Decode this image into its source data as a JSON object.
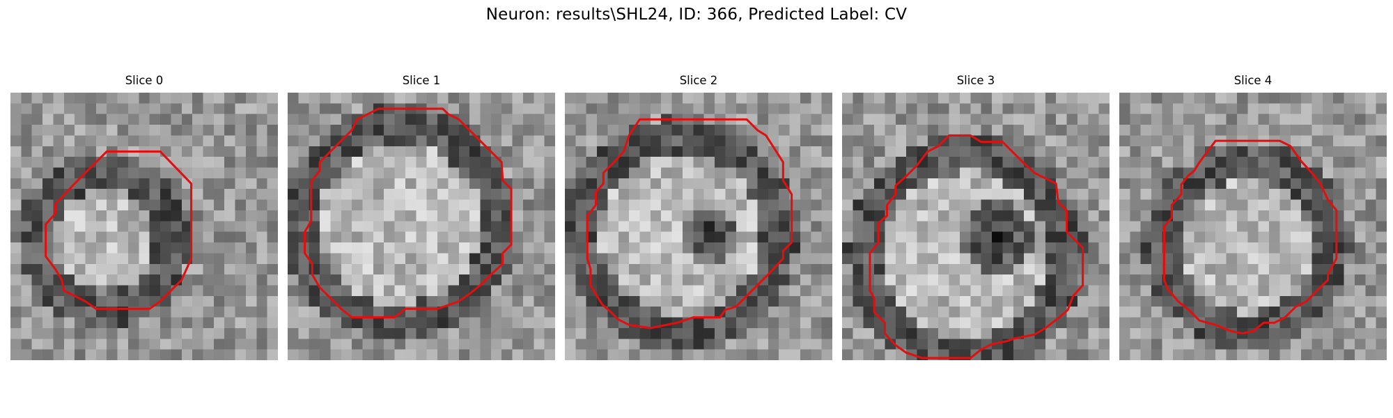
{
  "figure": {
    "title": "Neuron: results\\SHL24, ID: 366, Predicted Label: CV"
  },
  "colors": {
    "contour": "#e01010",
    "background": "#ffffff"
  },
  "panels": [
    {
      "title": "Slice 0",
      "image_description": "grayscale 25x25 microscopy patch with a bright roughly circular cell slightly left of centre surrounded by a dark ring",
      "contour": [
        [
          9,
          5.5
        ],
        [
          14,
          5.5
        ],
        [
          16.9,
          8.5
        ],
        [
          16.9,
          15.5
        ],
        [
          16,
          17.5
        ],
        [
          14,
          19.5
        ],
        [
          13,
          20.2
        ],
        [
          8,
          20.2
        ],
        [
          7,
          19.5
        ],
        [
          5,
          18.5
        ],
        [
          4.8,
          17.5
        ],
        [
          4.2,
          16.5
        ],
        [
          3.3,
          15.3
        ],
        [
          3.3,
          12.3
        ],
        [
          4.2,
          11.3
        ],
        [
          4.2,
          10.4
        ],
        [
          6,
          8.5
        ],
        [
          8,
          6.5
        ]
      ]
    },
    {
      "title": "Slice 1",
      "image_description": "grayscale patch with a large bright textured cell body outlined by a dark ring filling most of the frame",
      "contour": [
        [
          8.5,
          1.5
        ],
        [
          14.5,
          1.5
        ],
        [
          15,
          2
        ],
        [
          16,
          2.5
        ],
        [
          19,
          5.5
        ],
        [
          20,
          6.5
        ],
        [
          20.1,
          8.2
        ],
        [
          20.9,
          9
        ],
        [
          20.9,
          14.2
        ],
        [
          20.1,
          15
        ],
        [
          20.1,
          16
        ],
        [
          19,
          17
        ],
        [
          18,
          18
        ],
        [
          17,
          18.8
        ],
        [
          16,
          19.5
        ],
        [
          14,
          20.2
        ],
        [
          11,
          20.2
        ],
        [
          10,
          21
        ],
        [
          8,
          21
        ],
        [
          6,
          21
        ],
        [
          5,
          20.2
        ],
        [
          4,
          19.2
        ],
        [
          3,
          18.2
        ],
        [
          2.3,
          17
        ],
        [
          2.3,
          16
        ],
        [
          1.6,
          15
        ],
        [
          1.6,
          13
        ],
        [
          2.2,
          12
        ],
        [
          2.2,
          8.3
        ],
        [
          3,
          7.3
        ],
        [
          3,
          6.5
        ],
        [
          4,
          5.5
        ],
        [
          5,
          4.5
        ],
        [
          6,
          3.5
        ],
        [
          6.5,
          2.5
        ]
      ]
    },
    {
      "title": "Slice 2",
      "image_description": "grayscale patch with a large bright cell containing a dark irregular nucleus region right of centre, outlined by a darker ring",
      "contour": [
        [
          7,
          2.5
        ],
        [
          17,
          2.5
        ],
        [
          18,
          3.5
        ],
        [
          18.8,
          4
        ],
        [
          19.7,
          5.4
        ],
        [
          20.4,
          6.5
        ],
        [
          20.4,
          8.2
        ],
        [
          21.2,
          9.5
        ],
        [
          21.2,
          14
        ],
        [
          20.4,
          14.8
        ],
        [
          20.4,
          15.5
        ],
        [
          19,
          17
        ],
        [
          17,
          19
        ],
        [
          16,
          20
        ],
        [
          15,
          20.3
        ],
        [
          14.5,
          21
        ],
        [
          12,
          21
        ],
        [
          10.5,
          21.5
        ],
        [
          8,
          22
        ],
        [
          6,
          21.7
        ],
        [
          5,
          21.2
        ],
        [
          4.3,
          20.5
        ],
        [
          3.5,
          19.8
        ],
        [
          3,
          19
        ],
        [
          2.4,
          18
        ],
        [
          2.4,
          16.5
        ],
        [
          2.1,
          15.5
        ],
        [
          2.1,
          11.5
        ],
        [
          2.9,
          10.5
        ],
        [
          2.9,
          9.3
        ],
        [
          3.6,
          8.5
        ],
        [
          3.6,
          7.5
        ],
        [
          4.6,
          6.5
        ],
        [
          5.5,
          5.5
        ],
        [
          6,
          4
        ]
      ]
    },
    {
      "title": "Slice 3",
      "image_description": "grayscale patch showing a ring-shaped bright cell with a dark round nucleus in the middle and a dark rim",
      "contour": [
        [
          10,
          4
        ],
        [
          12,
          4
        ],
        [
          13,
          4.6
        ],
        [
          15,
          4.6
        ],
        [
          17,
          6.6
        ],
        [
          18,
          7.5
        ],
        [
          20,
          8.5
        ],
        [
          20.2,
          10.2
        ],
        [
          21,
          11
        ],
        [
          21,
          13
        ],
        [
          22.5,
          14.5
        ],
        [
          22.5,
          18
        ],
        [
          21.6,
          19
        ],
        [
          21.1,
          20.3
        ],
        [
          20.3,
          21
        ],
        [
          19,
          22
        ],
        [
          18,
          22.6
        ],
        [
          16,
          23
        ],
        [
          15.5,
          23.2
        ],
        [
          14,
          23.5
        ],
        [
          13,
          24
        ],
        [
          12,
          24.8
        ],
        [
          9,
          24.8
        ],
        [
          7.5,
          24.8
        ],
        [
          6,
          24.3
        ],
        [
          5,
          23.6
        ],
        [
          4,
          22.5
        ],
        [
          4,
          21.5
        ],
        [
          3,
          20.5
        ],
        [
          3,
          19.2
        ],
        [
          2.6,
          18.5
        ],
        [
          2.6,
          15
        ],
        [
          3.4,
          14
        ],
        [
          3.4,
          12.2
        ],
        [
          4.2,
          11.5
        ],
        [
          4.2,
          10.5
        ],
        [
          5,
          9.5
        ],
        [
          5,
          8.7
        ],
        [
          6,
          7.8
        ],
        [
          7,
          6.8
        ],
        [
          8,
          5.5
        ],
        [
          9,
          5
        ]
      ]
    },
    {
      "title": "Slice 4",
      "image_description": "grayscale noisy patch with a round bright speckled cell body and a darker boundary ring",
      "contour": [
        [
          9,
          4.5
        ],
        [
          15,
          4.5
        ],
        [
          16,
          5
        ],
        [
          17,
          6.4
        ],
        [
          18,
          7.5
        ],
        [
          18.8,
          8.5
        ],
        [
          19.5,
          10
        ],
        [
          20.3,
          11
        ],
        [
          20.3,
          15.5
        ],
        [
          19.5,
          17
        ],
        [
          19.5,
          17.5
        ],
        [
          18.5,
          18.5
        ],
        [
          17.5,
          19.5
        ],
        [
          16.5,
          20
        ],
        [
          15.5,
          21
        ],
        [
          14.5,
          21.5
        ],
        [
          13.5,
          21.5
        ],
        [
          12.5,
          22.3
        ],
        [
          11.5,
          22.5
        ],
        [
          10.5,
          22.3
        ],
        [
          9,
          21.7
        ],
        [
          7.5,
          21.3
        ],
        [
          6.5,
          20.3
        ],
        [
          5.5,
          19.5
        ],
        [
          4.5,
          18.3
        ],
        [
          4.2,
          17.5
        ],
        [
          4.2,
          12.5
        ],
        [
          4.9,
          11.7
        ],
        [
          4.9,
          10.5
        ],
        [
          5.8,
          9.5
        ],
        [
          5.8,
          8.6
        ],
        [
          6.4,
          7.8
        ],
        [
          7,
          7.3
        ],
        [
          7.5,
          6.5
        ]
      ]
    }
  ]
}
